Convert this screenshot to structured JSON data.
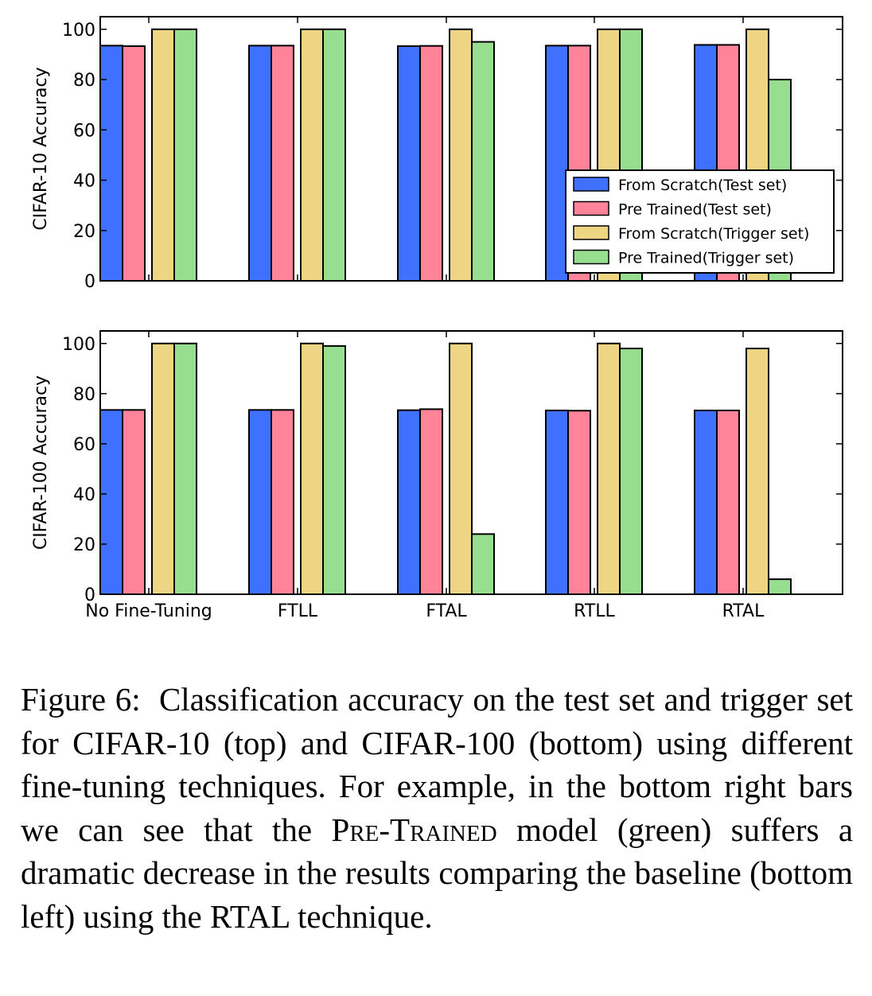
{
  "chart_data": [
    {
      "type": "bar",
      "title": "",
      "xlabel": "",
      "ylabel": "CIFAR-10 Accuracy",
      "ylim": [
        0,
        100
      ],
      "yticks": [
        "0",
        "20",
        "40",
        "60",
        "80",
        "100"
      ],
      "categories": [
        "No Fine-Tuning",
        "FTLL",
        "FTAL",
        "RTLL",
        "RTAL"
      ],
      "show_category_labels": false,
      "legend_position": "lower-right",
      "series": [
        {
          "name": "From Scratch(Test set)",
          "color": "#4070ff",
          "values": [
            93.5,
            93.5,
            93.3,
            93.5,
            93.8
          ]
        },
        {
          "name": "Pre Trained(Test set)",
          "color": "#ff8499",
          "values": [
            93.3,
            93.5,
            93.4,
            93.5,
            93.8
          ]
        },
        {
          "name": "From Scratch(Trigger set)",
          "color": "#eed584",
          "values": [
            100,
            100,
            100,
            100,
            100
          ]
        },
        {
          "name": "Pre Trained(Trigger set)",
          "color": "#98de90",
          "values": [
            100,
            100,
            95,
            100,
            80
          ]
        }
      ]
    },
    {
      "type": "bar",
      "title": "",
      "xlabel": "",
      "ylabel": "CIFAR-100 Accuracy",
      "ylim": [
        0,
        100
      ],
      "yticks": [
        "0",
        "20",
        "40",
        "60",
        "80",
        "100"
      ],
      "categories": [
        "No Fine-Tuning",
        "FTLL",
        "FTAL",
        "RTLL",
        "RTAL"
      ],
      "show_category_labels": true,
      "series": [
        {
          "name": "From Scratch(Test set)",
          "color": "#4070ff",
          "values": [
            73.5,
            73.5,
            73.4,
            73.3,
            73.3
          ]
        },
        {
          "name": "Pre Trained(Test set)",
          "color": "#ff8499",
          "values": [
            73.5,
            73.5,
            73.8,
            73.2,
            73.3
          ]
        },
        {
          "name": "From Scratch(Trigger set)",
          "color": "#eed584",
          "values": [
            100,
            100,
            100,
            100,
            98
          ]
        },
        {
          "name": "Pre Trained(Trigger set)",
          "color": "#98de90",
          "values": [
            100,
            99,
            24,
            98,
            6
          ]
        }
      ]
    }
  ],
  "caption": {
    "label": "Figure 6:",
    "text_1": "Classification accuracy on the test set and trigger set for CIFAR-10 (top) and CIFAR-100 (bot­tom) using different fine-tuning techniques. For exam­ple, in the bottom right bars we can see that the",
    "smallcaps": "Pre-Trained",
    "text_2": "model (green) suffers a dramatic decrease in the results comparing the baseline (bottom left) using the RTAL technique."
  }
}
